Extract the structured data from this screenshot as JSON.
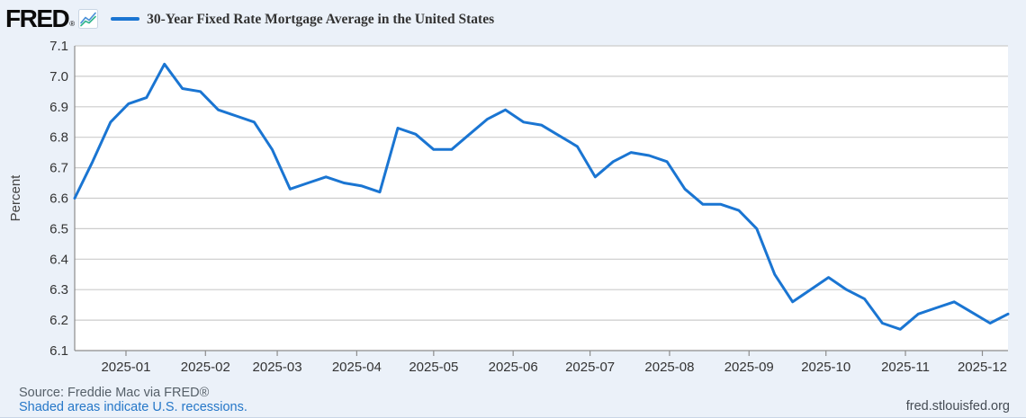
{
  "header": {
    "logo_text": "FRED",
    "logo_reg": "®",
    "series_title": "30-Year Fixed Rate Mortgage Average in the United States"
  },
  "chart_data": {
    "type": "line",
    "title": "30-Year Fixed Rate Mortgage Average in the United States",
    "xlabel": "",
    "ylabel": "Percent",
    "ylim": [
      6.1,
      7.1
    ],
    "ytick_step": 0.1,
    "grid": true,
    "legend_position": "top-left",
    "line_color": "#1a75d2",
    "frequency": "weekly",
    "x": [
      "2024-12-12",
      "2024-12-19",
      "2024-12-26",
      "2025-01-02",
      "2025-01-09",
      "2025-01-16",
      "2025-01-23",
      "2025-01-30",
      "2025-02-06",
      "2025-02-13",
      "2025-02-20",
      "2025-02-27",
      "2025-03-06",
      "2025-03-13",
      "2025-03-20",
      "2025-03-27",
      "2025-04-03",
      "2025-04-10",
      "2025-04-17",
      "2025-04-24",
      "2025-05-01",
      "2025-05-08",
      "2025-05-15",
      "2025-05-22",
      "2025-05-29",
      "2025-06-05",
      "2025-06-12",
      "2025-06-18",
      "2025-06-26",
      "2025-07-03",
      "2025-07-10",
      "2025-07-17",
      "2025-07-24",
      "2025-07-31",
      "2025-08-07",
      "2025-08-14",
      "2025-08-21",
      "2025-08-28",
      "2025-09-04",
      "2025-09-11",
      "2025-09-18",
      "2025-09-25",
      "2025-10-02",
      "2025-10-09",
      "2025-10-16",
      "2025-10-23",
      "2025-10-30",
      "2025-11-06",
      "2025-11-13",
      "2025-11-20",
      "2025-11-26",
      "2025-12-04",
      "2025-12-11"
    ],
    "values": [
      6.6,
      6.72,
      6.85,
      6.91,
      6.93,
      7.04,
      6.96,
      6.95,
      6.89,
      6.87,
      6.85,
      6.76,
      6.63,
      6.65,
      6.67,
      6.65,
      6.64,
      6.62,
      6.83,
      6.81,
      6.76,
      6.76,
      6.81,
      6.86,
      6.89,
      6.85,
      6.84,
      6.81,
      6.77,
      6.67,
      6.72,
      6.75,
      6.74,
      6.72,
      6.63,
      6.58,
      6.58,
      6.56,
      6.5,
      6.35,
      6.26,
      6.3,
      6.34,
      6.3,
      6.27,
      6.19,
      6.17,
      6.22,
      6.24,
      6.26,
      6.23,
      6.19,
      6.22
    ],
    "xticks": [
      {
        "date": "2025-01-01",
        "label": "2025-01"
      },
      {
        "date": "2025-02-01",
        "label": "2025-02"
      },
      {
        "date": "2025-03-01",
        "label": "2025-03"
      },
      {
        "date": "2025-04-01",
        "label": "2025-04"
      },
      {
        "date": "2025-05-01",
        "label": "2025-05"
      },
      {
        "date": "2025-06-01",
        "label": "2025-06"
      },
      {
        "date": "2025-07-01",
        "label": "2025-07"
      },
      {
        "date": "2025-08-01",
        "label": "2025-08"
      },
      {
        "date": "2025-09-01",
        "label": "2025-09"
      },
      {
        "date": "2025-10-01",
        "label": "2025-10"
      },
      {
        "date": "2025-11-01",
        "label": "2025-11"
      },
      {
        "date": "2025-12-01",
        "label": "2025-12"
      }
    ]
  },
  "footer": {
    "source": "Source: Freddie Mac via FRED®",
    "recessions_note": "Shaded areas indicate U.S. recessions.",
    "site": "fred.stlouisfed.org"
  },
  "colors": {
    "page_bg": "#ebf1f9",
    "plot_bg": "#ffffff",
    "gridline": "#cccccc",
    "axis": "#8c8c8c",
    "line": "#1a75d2",
    "title_text": "#333333",
    "tick_text": "#333333",
    "source_text": "#555f68",
    "link": "#2577c8"
  }
}
